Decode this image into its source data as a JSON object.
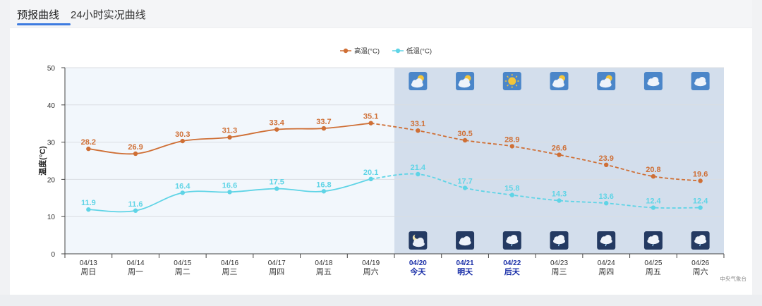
{
  "tabs": [
    {
      "label": "预报曲线",
      "active": true
    },
    {
      "label": "24小时实况曲线",
      "active": false
    }
  ],
  "colors": {
    "high": "#cf6f35",
    "low": "#5fd4e6",
    "past_bg": "#f2f7fc",
    "future_bg": "#d3deec",
    "highlight_date": "#1a2fa8",
    "grid": "#d9dde2",
    "axis": "#444444"
  },
  "chart_data": {
    "type": "line",
    "ylabel": "温度(°C)",
    "ylim": [
      0,
      50
    ],
    "yticks": [
      0,
      10,
      20,
      30,
      40,
      50
    ],
    "grid": true,
    "legend_position": "top-center",
    "categories": [
      {
        "date": "04/13",
        "weekday": "周日"
      },
      {
        "date": "04/14",
        "weekday": "周一"
      },
      {
        "date": "04/15",
        "weekday": "周二"
      },
      {
        "date": "04/16",
        "weekday": "周三"
      },
      {
        "date": "04/17",
        "weekday": "周四"
      },
      {
        "date": "04/18",
        "weekday": "周五"
      },
      {
        "date": "04/19",
        "weekday": "周六"
      },
      {
        "date": "04/20",
        "weekday": "今天"
      },
      {
        "date": "04/21",
        "weekday": "明天"
      },
      {
        "date": "04/22",
        "weekday": "后天"
      },
      {
        "date": "04/23",
        "weekday": "周三"
      },
      {
        "date": "04/24",
        "weekday": "周四"
      },
      {
        "date": "04/25",
        "weekday": "周五"
      },
      {
        "date": "04/26",
        "weekday": "周六"
      }
    ],
    "forecast_start_index": 7,
    "highlight_indices": [
      7,
      8,
      9
    ],
    "series": [
      {
        "name": "高温(°C)",
        "key": "high",
        "values": [
          28.2,
          26.9,
          30.3,
          31.3,
          33.4,
          33.7,
          35.1,
          33.1,
          30.5,
          28.9,
          26.6,
          23.9,
          20.8,
          19.6
        ]
      },
      {
        "name": "低温(°C)",
        "key": "low",
        "values": [
          11.9,
          11.6,
          16.4,
          16.6,
          17.5,
          16.8,
          20.1,
          21.4,
          17.7,
          15.8,
          14.3,
          13.6,
          12.4,
          12.4
        ]
      }
    ],
    "day_weather_icons": [
      "partly-cloudy-icon",
      "partly-cloudy-icon",
      "sunny-icon",
      "partly-cloudy-icon",
      "partly-cloudy-icon",
      "cloudy-icon",
      "cloudy-icon"
    ],
    "night_weather_icons": [
      "partly-cloudy-night-icon",
      "cloudy-icon",
      "light-rain-icon",
      "light-rain-icon",
      "light-rain-icon",
      "light-rain-icon",
      "light-rain-icon"
    ]
  },
  "source_label": "中央气象台"
}
